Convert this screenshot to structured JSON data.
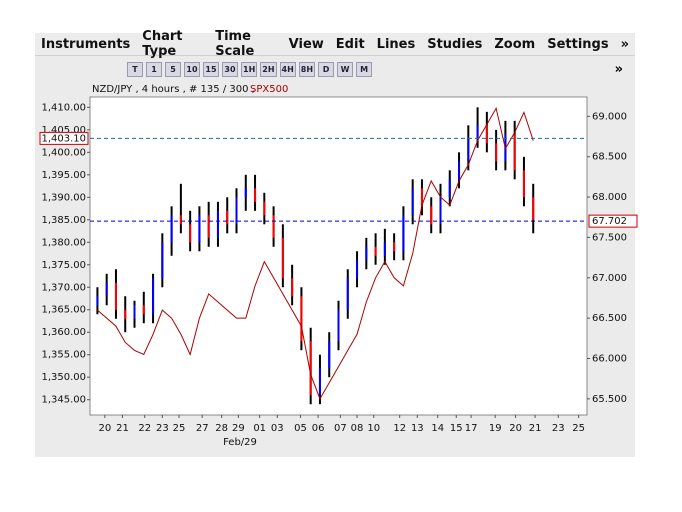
{
  "menu": [
    "Instruments",
    "Chart Type",
    "Time Scale",
    "View",
    "Edit",
    "Lines",
    "Studies",
    "Zoom",
    "Settings",
    "»"
  ],
  "toolbar": {
    "periods": [
      "T",
      "1",
      "5",
      "10",
      "15",
      "30",
      "1H",
      "2H",
      "4H",
      "8H",
      "D",
      "W",
      "M"
    ],
    "more": "»"
  },
  "chart_data": {
    "type": "candlestick",
    "title": "NZD/JPY , 4 hours , # 135 / 300 ,",
    "x_note": "Feb/29",
    "xlim": [
      -0.8,
      52.8
    ],
    "xticks": [
      {
        "value": 0.8,
        "label": "20"
      },
      {
        "value": 2.7,
        "label": "21"
      },
      {
        "value": 5.1,
        "label": "22"
      },
      {
        "value": 7.0,
        "label": "23"
      },
      {
        "value": 8.8,
        "label": "25"
      },
      {
        "value": 11.3,
        "label": "27"
      },
      {
        "value": 13.4,
        "label": "28"
      },
      {
        "value": 15.2,
        "label": "29"
      },
      {
        "value": 17.5,
        "label": "01"
      },
      {
        "value": 19.4,
        "label": "03"
      },
      {
        "value": 21.9,
        "label": "05"
      },
      {
        "value": 23.8,
        "label": "06"
      },
      {
        "value": 26.2,
        "label": "07"
      },
      {
        "value": 28.0,
        "label": "08"
      },
      {
        "value": 29.8,
        "label": "10"
      },
      {
        "value": 32.6,
        "label": "12"
      },
      {
        "value": 34.5,
        "label": "13"
      },
      {
        "value": 36.7,
        "label": "14"
      },
      {
        "value": 38.7,
        "label": "15"
      },
      {
        "value": 40.3,
        "label": "17"
      },
      {
        "value": 42.9,
        "label": "19"
      },
      {
        "value": 45.1,
        "label": "20"
      },
      {
        "value": 47.2,
        "label": "21"
      },
      {
        "value": 49.7,
        "label": "23"
      },
      {
        "value": 51.9,
        "label": "25"
      }
    ],
    "ylim": [
      1341.6,
      1412.3
    ],
    "yticks": [
      {
        "value": 1345,
        "label": "1,345.00"
      },
      {
        "value": 1350,
        "label": "1,350.00"
      },
      {
        "value": 1355,
        "label": "1,355.00"
      },
      {
        "value": 1360,
        "label": "1,360.00"
      },
      {
        "value": 1365,
        "label": "1,365.00"
      },
      {
        "value": 1370,
        "label": "1,370.00"
      },
      {
        "value": 1375,
        "label": "1,375.00"
      },
      {
        "value": 1380,
        "label": "1,380.00"
      },
      {
        "value": 1385,
        "label": "1,385.00"
      },
      {
        "value": 1390,
        "label": "1,390.00"
      },
      {
        "value": 1395,
        "label": "1,395.00"
      },
      {
        "value": 1400,
        "label": "1,400.00"
      },
      {
        "value": 1405,
        "label": "1,405.00"
      },
      {
        "value": 1410,
        "label": "1,410.00"
      }
    ],
    "y2lim": [
      65.3,
      69.24
    ],
    "y2ticks": [
      {
        "value": 65.5,
        "label": "65.500"
      },
      {
        "value": 66,
        "label": "66.000"
      },
      {
        "value": 66.5,
        "label": "66.500"
      },
      {
        "value": 67,
        "label": "67.000"
      },
      {
        "value": 67.5,
        "label": "67.500"
      },
      {
        "value": 68,
        "label": "68.000"
      },
      {
        "value": 68.5,
        "label": "68.500"
      },
      {
        "value": 69,
        "label": "69.000"
      }
    ],
    "up_color": "#0000ff",
    "down_color": "#ff0000",
    "open": [
      1366,
      1368,
      1371,
      1365,
      1363,
      1366,
      1364,
      1372,
      1380,
      1386,
      1384,
      1380,
      1386,
      1381,
      1387,
      1384,
      1390,
      1392,
      1389,
      1386,
      1381,
      1372,
      1368,
      1358,
      1346,
      1352,
      1358,
      1365,
      1372,
      1376,
      1379,
      1377,
      1380,
      1378,
      1386,
      1392,
      1388,
      1384,
      1390,
      1394,
      1398,
      1403,
      1406,
      1402,
      1398,
      1404,
      1396,
      1390
    ],
    "high": [
      1370,
      1373,
      1374,
      1368,
      1367,
      1369,
      1373,
      1382,
      1388,
      1393,
      1387,
      1388,
      1389,
      1389,
      1390,
      1392,
      1395,
      1395,
      1391,
      1388,
      1384,
      1375,
      1370,
      1361,
      1355,
      1360,
      1367,
      1374,
      1378,
      1381,
      1382,
      1383,
      1382,
      1388,
      1394,
      1394,
      1390,
      1393,
      1396,
      1400,
      1406,
      1410,
      1409,
      1405,
      1407,
      1407,
      1399,
      1393
    ],
    "low": [
      1364,
      1366,
      1363,
      1360,
      1361,
      1362,
      1362,
      1370,
      1377,
      1382,
      1378,
      1378,
      1379,
      1379,
      1382,
      1382,
      1387,
      1387,
      1384,
      1379,
      1370,
      1366,
      1356,
      1344,
      1344,
      1350,
      1356,
      1363,
      1370,
      1374,
      1375,
      1375,
      1376,
      1376,
      1384,
      1386,
      1382,
      1382,
      1388,
      1392,
      1396,
      1401,
      1400,
      1396,
      1396,
      1394,
      1388,
      1382
    ],
    "close": [
      1368,
      1371,
      1365,
      1363,
      1366,
      1364,
      1372,
      1380,
      1386,
      1384,
      1380,
      1386,
      1381,
      1387,
      1384,
      1390,
      1392,
      1389,
      1386,
      1381,
      1372,
      1368,
      1358,
      1346,
      1352,
      1358,
      1365,
      1372,
      1376,
      1379,
      1377,
      1380,
      1378,
      1386,
      1392,
      1388,
      1384,
      1390,
      1394,
      1398,
      1403,
      1406,
      1402,
      1398,
      1404,
      1396,
      1390,
      1385
    ],
    "series": [
      {
        "name": "SPX500",
        "color": "#aa0000",
        "axis": "y2",
        "values": [
          66.6,
          66.5,
          66.4,
          66.2,
          66.1,
          66.05,
          66.3,
          66.6,
          66.5,
          66.3,
          66.05,
          66.5,
          66.8,
          66.7,
          66.6,
          66.5,
          66.5,
          66.9,
          67.2,
          67.0,
          66.8,
          66.6,
          66.4,
          65.8,
          65.5,
          65.7,
          65.9,
          66.1,
          66.3,
          66.7,
          67.0,
          67.2,
          67.0,
          66.9,
          67.3,
          67.9,
          68.2,
          68.0,
          67.9,
          68.2,
          68.4,
          68.7,
          68.9,
          69.1,
          68.6,
          68.8,
          69.05,
          68.7
        ]
      }
    ],
    "price_lines": [
      {
        "value": 1403.1,
        "label": "1,403.10",
        "axis": "y",
        "color": "#1a6f9a"
      },
      {
        "value": 67.702,
        "label": "67.702",
        "axis": "y2",
        "color": "#0000cc"
      }
    ]
  }
}
